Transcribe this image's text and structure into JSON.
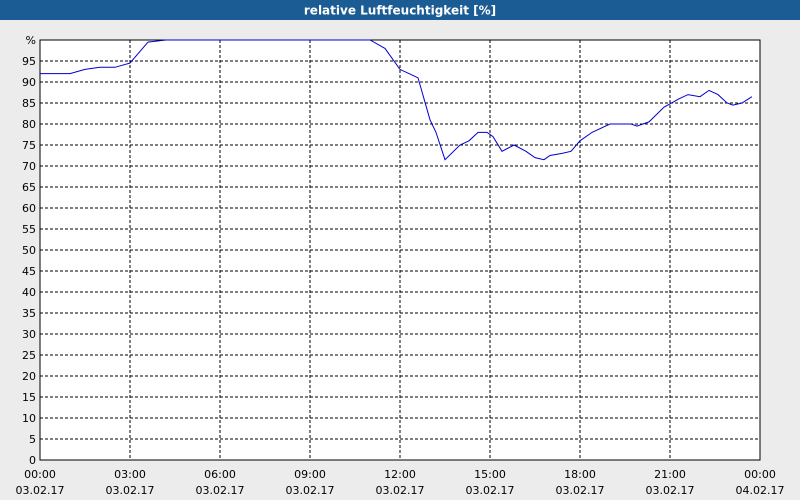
{
  "chart_data": {
    "type": "line",
    "title": "relative Luftfeuchtigkeit [%]",
    "x": [
      0,
      0.5,
      1,
      1.5,
      2,
      2.5,
      3,
      3.3,
      3.6,
      4.2,
      11,
      11.5,
      12,
      12.3,
      12.6,
      13,
      13.2,
      13.5,
      14,
      14.3,
      14.6,
      14.9,
      15.1,
      15.4,
      15.8,
      16.2,
      16.5,
      16.8,
      17,
      17.4,
      17.7,
      18,
      18.4,
      19,
      19.7,
      19.9,
      20.3,
      20.8,
      21.3,
      21.6,
      22,
      22.3,
      22.6,
      22.9,
      23.1,
      23.4,
      23.73
    ],
    "series": [
      {
        "name": "relative Luftfeuchtigkeit",
        "color": "#0000cc",
        "values": [
          92,
          92,
          92,
          93,
          93.5,
          93.5,
          94.5,
          97,
          99.5,
          100,
          100,
          98,
          93,
          92,
          91,
          81,
          78,
          71.5,
          75,
          76,
          78,
          78,
          77,
          73.5,
          75,
          73.5,
          72,
          71.5,
          72.5,
          73,
          73.5,
          76,
          78,
          80,
          80,
          79.5,
          80.5,
          84,
          86,
          87,
          86.5,
          88,
          87,
          85,
          84.5,
          85,
          86.5
        ]
      }
    ],
    "xlim": [
      0,
      24
    ],
    "xticks": [
      {
        "value": 0,
        "label": "00:00"
      },
      {
        "value": 3,
        "label": "03:00"
      },
      {
        "value": 6,
        "label": "06:00"
      },
      {
        "value": 9,
        "label": "09:00"
      },
      {
        "value": 12,
        "label": "12:00"
      },
      {
        "value": 15,
        "label": "15:00"
      },
      {
        "value": 18,
        "label": "18:00"
      },
      {
        "value": 21,
        "label": "21:00"
      },
      {
        "value": 24,
        "label": "00:00"
      }
    ],
    "xtick_dates": [
      "03.02.17",
      "03.02.17",
      "03.02.17",
      "03.02.17",
      "03.02.17",
      "03.02.17",
      "03.02.17",
      "03.02.17",
      "04.02.17"
    ],
    "ylim": [
      0,
      100
    ],
    "yticks": [
      0,
      5,
      10,
      15,
      20,
      25,
      30,
      35,
      40,
      45,
      50,
      55,
      60,
      65,
      70,
      75,
      80,
      85,
      90,
      95,
      {
        "value": 100,
        "label": "%"
      }
    ],
    "grid": true
  }
}
